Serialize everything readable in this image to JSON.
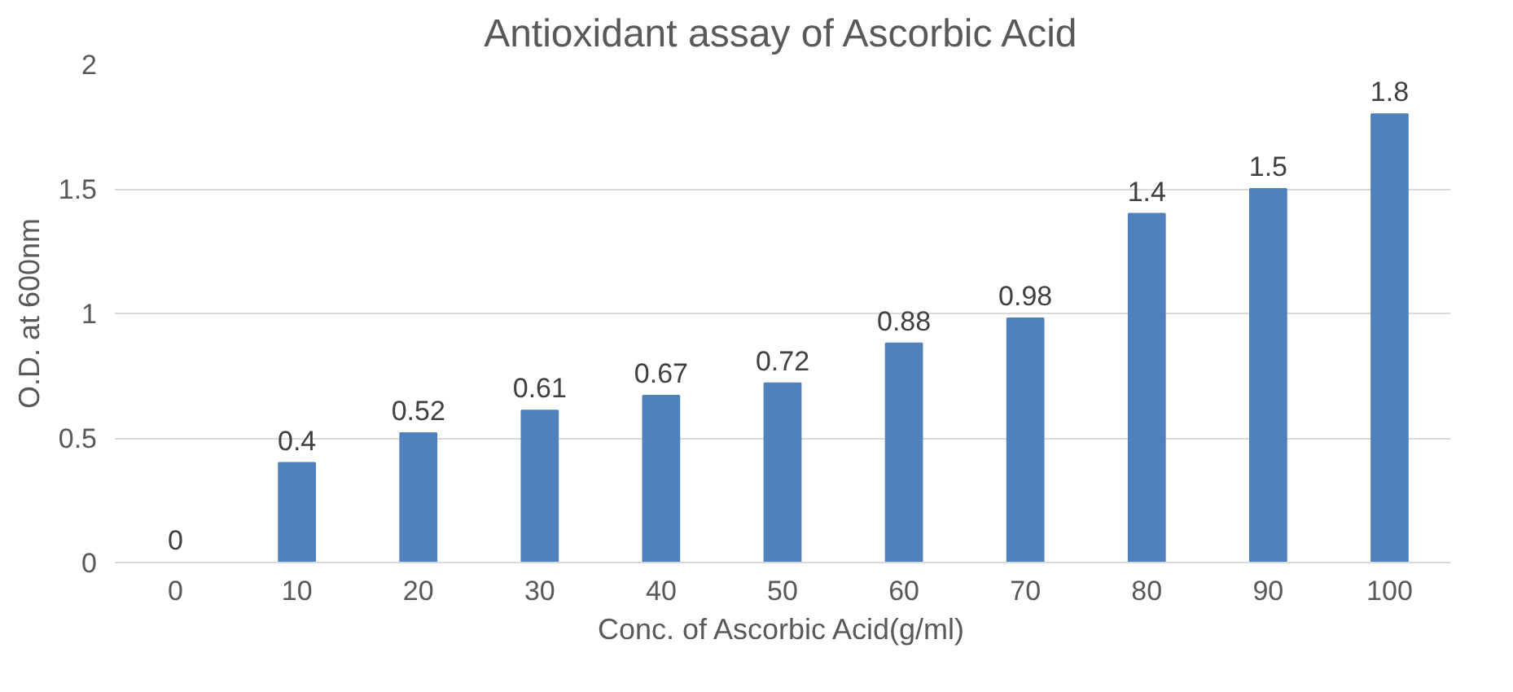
{
  "chart_data": {
    "type": "bar",
    "title": "Antioxidant assay of Ascorbic Acid",
    "xlabel": "Conc. of Ascorbic Acid(g/ml)",
    "ylabel": "O.D. at 600nm",
    "categories": [
      "0",
      "10",
      "20",
      "30",
      "40",
      "50",
      "60",
      "70",
      "80",
      "90",
      "100"
    ],
    "values": [
      0,
      0.4,
      0.52,
      0.61,
      0.67,
      0.72,
      0.88,
      0.98,
      1.4,
      1.5,
      1.8
    ],
    "color": "#4f81bd",
    "ylim": [
      0,
      2
    ],
    "yticks": [
      0,
      0.5,
      1,
      1.5,
      2
    ],
    "grid": "y",
    "data_labels": true
  }
}
